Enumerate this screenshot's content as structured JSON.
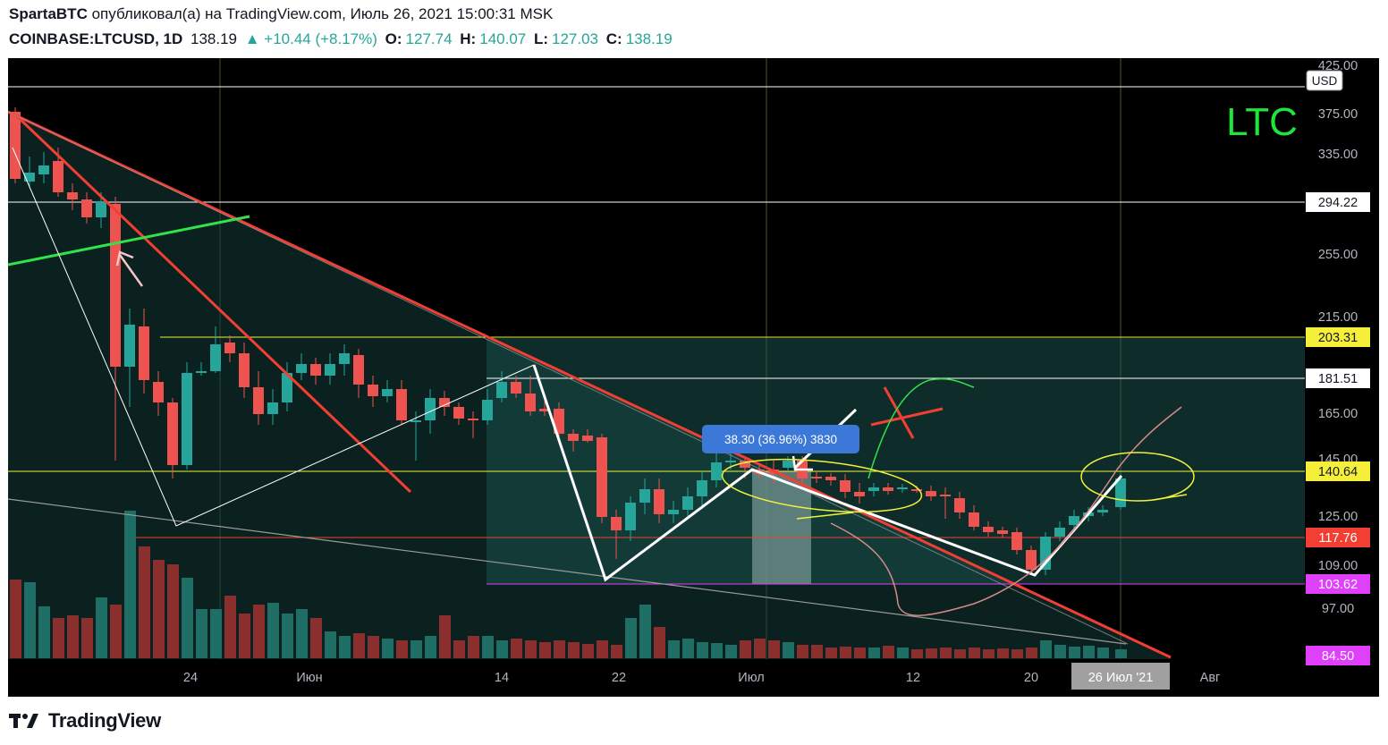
{
  "header": {
    "author": "SpartaBTC",
    "published_text": "опубликовал(а) на TradingView.com, Июль 26, 2021 15:00:31 MSK"
  },
  "symbol_line": {
    "symbol": "COINBASE:LTCUSD, 1D",
    "last": "138.19",
    "change": "▲ +10.44 (+8.17%)",
    "o_label": "O:",
    "o_value": "127.74",
    "h_label": "H:",
    "h_value": "140.07",
    "l_label": "L:",
    "l_value": "127.03",
    "c_label": "C:",
    "c_value": "138.19"
  },
  "chart": {
    "currency": "USD",
    "ticker_label": "LTC",
    "measure_label": "38.30 (36.96%) 3830",
    "price_axis_ticks": [
      "425.00",
      "375.00",
      "335.00",
      "255.00",
      "215.00",
      "165.00",
      "145.00",
      "125.00",
      "109.00",
      "97.00"
    ],
    "level_labels": [
      {
        "text": "294.22",
        "kind": "white"
      },
      {
        "text": "203.31",
        "kind": "yellow"
      },
      {
        "text": "181.51",
        "kind": "white"
      },
      {
        "text": "140.64",
        "kind": "yellow"
      },
      {
        "text": "117.76",
        "kind": "red"
      },
      {
        "text": "103.62",
        "kind": "magenta"
      },
      {
        "text": "84.50",
        "kind": "magenta"
      }
    ],
    "time_axis_labels": [
      "24",
      "Июн",
      "14",
      "22",
      "Июл",
      "12",
      "20",
      "Авг"
    ],
    "current_date_label": "26 Июл '21",
    "colors": {
      "background": "#000000",
      "up": "#26a69a",
      "down": "#ef5350",
      "trend_red": "#f23e33",
      "green_line": "#33e14a",
      "yellow": "#f2f23c",
      "magenta": "#e040fb",
      "ltc_label": "#1ee43c"
    }
  },
  "footer": {
    "brand": "TradingView"
  }
}
